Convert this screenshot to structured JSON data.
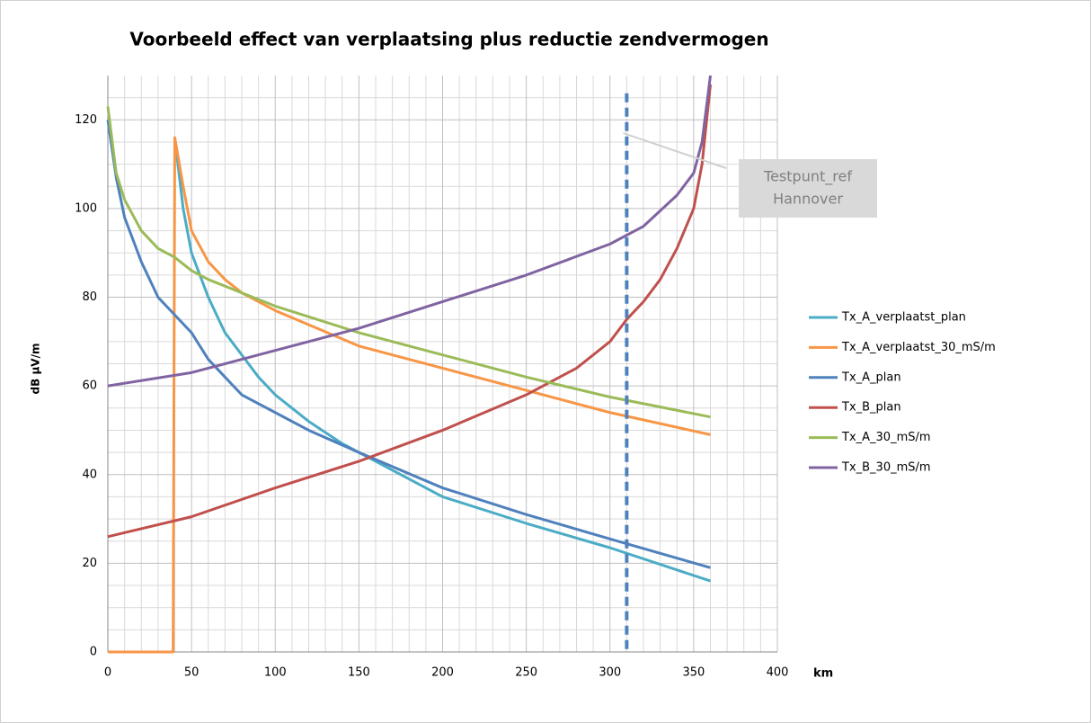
{
  "chart_data": {
    "type": "line",
    "title": "Voorbeeld effect van verplaatsing plus reductie zendvermogen",
    "xlabel": "km",
    "ylabel": "dB µV/m",
    "xlim": [
      0,
      400
    ],
    "xticks": [
      0,
      50,
      100,
      150,
      200,
      250,
      300,
      350,
      400
    ],
    "ylim": [
      0,
      130
    ],
    "yticks": [
      0,
      20,
      40,
      60,
      80,
      100,
      120
    ],
    "grid": true,
    "legend": "right",
    "series": [
      {
        "name": "Tx_A_verplaatst_plan",
        "color": "#4bacc6",
        "x": [
          40,
          45,
          50,
          60,
          70,
          80,
          90,
          100,
          120,
          140,
          150,
          200,
          250,
          300,
          360
        ],
        "values": [
          116,
          100,
          90,
          80,
          72,
          67,
          62,
          58,
          52,
          47,
          45,
          35,
          29,
          23.5,
          16
        ]
      },
      {
        "name": "Tx_A_verplaatst_30_mS/m",
        "color": "#f79646",
        "x": [
          0,
          38,
          39,
          40,
          45,
          50,
          60,
          70,
          80,
          100,
          150,
          200,
          250,
          300,
          360
        ],
        "values": [
          0,
          0,
          0,
          116,
          105,
          95,
          88,
          84,
          81,
          77,
          69,
          64,
          59,
          54,
          49
        ]
      },
      {
        "name": "Tx_A_plan",
        "color": "#4f81bd",
        "x": [
          0,
          5,
          10,
          20,
          30,
          40,
          50,
          60,
          70,
          80,
          100,
          120,
          150,
          200,
          250,
          300,
          360
        ],
        "values": [
          120,
          107,
          98,
          88,
          80,
          76,
          72,
          66,
          62,
          58,
          54,
          50,
          45,
          37,
          31,
          25.5,
          19
        ]
      },
      {
        "name": "Tx_B_plan",
        "color": "#c0504d",
        "x": [
          0,
          50,
          100,
          150,
          200,
          250,
          280,
          300,
          310,
          320,
          330,
          340,
          350,
          355,
          360
        ],
        "values": [
          26,
          30.5,
          37,
          43,
          50,
          58,
          64,
          70,
          75,
          79,
          84,
          91,
          100,
          110,
          128
        ]
      },
      {
        "name": "Tx_A_30_mS/m",
        "color": "#9bbb59",
        "x": [
          0,
          5,
          10,
          20,
          30,
          40,
          50,
          60,
          80,
          100,
          150,
          200,
          250,
          300,
          360
        ],
        "values": [
          123,
          108,
          102,
          95,
          91,
          89,
          86,
          84,
          81,
          78,
          72,
          67,
          62,
          57.5,
          53
        ]
      },
      {
        "name": "Tx_B_30_mS/m",
        "color": "#8064a2",
        "x": [
          0,
          50,
          100,
          150,
          200,
          250,
          300,
          320,
          340,
          350,
          355,
          360
        ],
        "values": [
          60,
          63,
          68,
          73,
          79,
          85,
          92,
          96,
          103,
          108,
          115,
          130
        ]
      }
    ],
    "vline": {
      "x": 310,
      "color": "#4f81bd"
    },
    "annotation": {
      "lines": [
        "Testpunt_ref",
        "Hannover"
      ],
      "x": 308,
      "y": 117
    }
  }
}
